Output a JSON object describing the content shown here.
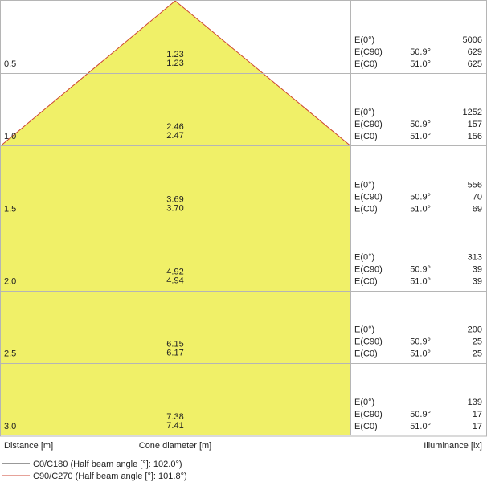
{
  "colors": {
    "cone_fill": "#f0f068",
    "c0_line": "#333333",
    "c90_line": "#cc4433",
    "grid_line": "#b5b5b5",
    "text": "#222222"
  },
  "rows": [
    {
      "distance": "0.5",
      "diam_c0": "1.23",
      "diam_c90": "1.23",
      "e0_label": "E(0°)",
      "e0": "5006",
      "ec90_label": "E(C90)",
      "ec90_angle": "50.9°",
      "ec90": "629",
      "ec0_label": "E(C0)",
      "ec0_angle": "51.0°",
      "ec0": "625"
    },
    {
      "distance": "1.0",
      "diam_c0": "2.46",
      "diam_c90": "2.47",
      "e0_label": "E(0°)",
      "e0": "1252",
      "ec90_label": "E(C90)",
      "ec90_angle": "50.9°",
      "ec90": "157",
      "ec0_label": "E(C0)",
      "ec0_angle": "51.0°",
      "ec0": "156"
    },
    {
      "distance": "1.5",
      "diam_c0": "3.69",
      "diam_c90": "3.70",
      "e0_label": "E(0°)",
      "e0": "556",
      "ec90_label": "E(C90)",
      "ec90_angle": "50.9°",
      "ec90": "70",
      "ec0_label": "E(C0)",
      "ec0_angle": "51.0°",
      "ec0": "69"
    },
    {
      "distance": "2.0",
      "diam_c0": "4.92",
      "diam_c90": "4.94",
      "e0_label": "E(0°)",
      "e0": "313",
      "ec90_label": "E(C90)",
      "ec90_angle": "50.9°",
      "ec90": "39",
      "ec0_label": "E(C0)",
      "ec0_angle": "51.0°",
      "ec0": "39"
    },
    {
      "distance": "2.5",
      "diam_c0": "6.15",
      "diam_c90": "6.17",
      "e0_label": "E(0°)",
      "e0": "200",
      "ec90_label": "E(C90)",
      "ec90_angle": "50.9°",
      "ec90": "25",
      "ec0_label": "E(C0)",
      "ec0_angle": "51.0°",
      "ec0": "25"
    },
    {
      "distance": "3.0",
      "diam_c0": "7.38",
      "diam_c90": "7.41",
      "e0_label": "E(0°)",
      "e0": "139",
      "ec90_label": "E(C90)",
      "ec90_angle": "50.9°",
      "ec90": "17",
      "ec0_label": "E(C0)",
      "ec0_angle": "51.0°",
      "ec0": "17"
    }
  ],
  "footer": {
    "distance_label": "Distance [m]",
    "cone_label": "Cone diameter [m]",
    "illuminance_label": "Illuminance [lx]"
  },
  "legend": {
    "c0_label": "C0/C180 (Half beam angle [°]: 102.0°)",
    "c90_label": "C90/C270 (Half beam angle [°]: 101.8°)"
  }
}
